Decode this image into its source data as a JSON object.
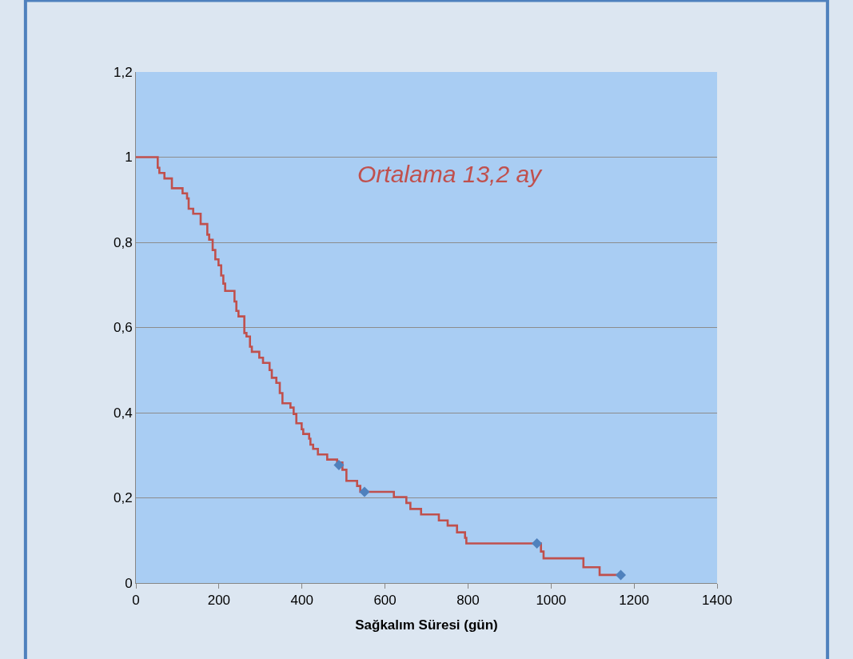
{
  "chart_data": {
    "type": "step",
    "xlabel": "Sağkalım Süresi (gün)",
    "annotations": [
      "Ortalama 13,2 ay"
    ],
    "xlim": [
      0,
      1400
    ],
    "xticks": [
      0,
      200,
      400,
      600,
      800,
      1000,
      1200,
      1400
    ],
    "ylim": [
      0,
      1.2
    ],
    "yticks": [
      0,
      {
        "value": 0.2,
        "label": "0,2"
      },
      {
        "value": 0.4,
        "label": "0,4"
      },
      {
        "value": 0.6,
        "label": "0,6"
      },
      {
        "value": 0.8,
        "label": "0,8"
      },
      1,
      {
        "value": 1.2,
        "label": "1,2"
      }
    ],
    "grid": "y",
    "series": [
      {
        "color": "#c0504d",
        "marker": "none",
        "line_style": "solid",
        "x": [
          0,
          52.6,
          56.5,
          68.7,
          86.7,
          112.4,
          123.2,
          127.1,
          138.0,
          156.0,
          172.0,
          176.5,
          184.9,
          191.3,
          199.0,
          205.4,
          210.6,
          215.0,
          237.5,
          242.0,
          247.1,
          261.2,
          266.4,
          274.8,
          279.3,
          297.2,
          306.2,
          322,
          327.4,
          338.3,
          346.6,
          353.0,
          372.3,
          380.0,
          386.5,
          399.3,
          403.1,
          417.3,
          420.4,
          426.9,
          438.4,
          460.8,
          484.7,
          497.5,
          507.1,
          532.8,
          540.5,
          621.4,
          651.5,
          661.2,
          686.9,
          729.8,
          751.0,
          773.5,
          792.8,
          796,
          975.7,
          982,
          1078,
          1117,
          1168
        ],
        "values": [
          1,
          0.975,
          0.963,
          0.95,
          0.927,
          0.915,
          0.903,
          0.879,
          0.867,
          0.843,
          0.818,
          0.806,
          0.782,
          0.76,
          0.746,
          0.722,
          0.703,
          0.686,
          0.661,
          0.639,
          0.626,
          0.587,
          0.579,
          0.555,
          0.543,
          0.529,
          0.517,
          0.5,
          0.482,
          0.47,
          0.446,
          0.422,
          0.412,
          0.397,
          0.375,
          0.361,
          0.35,
          0.339,
          0.325,
          0.315,
          0.302,
          0.29,
          0.283,
          0.266,
          0.24,
          0.228,
          0.214,
          0.202,
          0.188,
          0.174,
          0.161,
          0.147,
          0.135,
          0.119,
          0.106,
          0.093,
          0.074,
          0.058,
          0.037,
          0.019,
          0.019
        ]
      },
      {
        "type": "scatter",
        "color": "#4f81bd",
        "marker": "diamond",
        "x": [
          489,
          550.7,
          966,
          1168
        ],
        "values": [
          0.277,
          0.214,
          0.093,
          0.019
        ]
      }
    ]
  }
}
